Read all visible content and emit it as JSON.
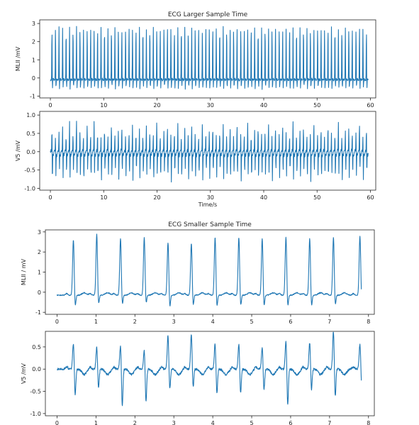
{
  "chart_data": [
    {
      "type": "line",
      "title": "ECG Larger Sample Time",
      "xlabel": "",
      "ylabel": "MLII /mV",
      "xlim": [
        -2,
        61
      ],
      "ylim": [
        -1.1,
        3.2
      ],
      "xticks": [
        0,
        10,
        20,
        30,
        40,
        50,
        60
      ],
      "yticks": [
        -1,
        0,
        1,
        2,
        3
      ],
      "color": "#1f77b4",
      "series": [
        {
          "beat_times": [
            0.3,
            0.96,
            1.62,
            2.3,
            2.95,
            3.6,
            4.25,
            4.9,
            5.55,
            6.2,
            6.9,
            7.55,
            8.2,
            8.85,
            9.5,
            10.15,
            10.8,
            11.45,
            12.1,
            12.75,
            13.4,
            14.1,
            14.75,
            15.4,
            16.05,
            16.7,
            17.35,
            18.0,
            18.65,
            19.3,
            19.95,
            20.6,
            21.3,
            21.95,
            22.6,
            23.25,
            23.9,
            24.55,
            25.2,
            25.85,
            26.5,
            27.15,
            27.8,
            28.5,
            29.15,
            29.8,
            30.45,
            31.1,
            31.75,
            32.4,
            33.05,
            33.7,
            34.35,
            35.0,
            35.7,
            36.35,
            37.0,
            37.65,
            38.3,
            38.95,
            39.6,
            40.25,
            40.9,
            41.55,
            42.2,
            42.9,
            43.55,
            44.2,
            44.85,
            45.5,
            46.15,
            46.8,
            47.45,
            48.1,
            48.75,
            49.4,
            50.1,
            50.75,
            51.4,
            52.05,
            52.7,
            53.35,
            54.0,
            54.65,
            55.3,
            55.95,
            56.6,
            57.3,
            57.95,
            58.6,
            59.25
          ],
          "peak_values": [
            2.7,
            2.9,
            2.85,
            2.8,
            2.7,
            2.85,
            2.8,
            2.9,
            2.75,
            2.8,
            2.85,
            2.8,
            2.7,
            2.8,
            2.85,
            2.8,
            2.75,
            2.8,
            2.85,
            2.8,
            2.7,
            2.8,
            2.85,
            2.75,
            2.8,
            2.85,
            2.8,
            2.7,
            2.8,
            2.85,
            2.8,
            2.75,
            2.9,
            2.85,
            2.8,
            2.7,
            2.8,
            2.85,
            2.8,
            2.75,
            2.8,
            2.85,
            2.8,
            2.7,
            2.85,
            2.8,
            2.9,
            2.75,
            2.8,
            2.85,
            2.8,
            2.7,
            2.8,
            2.85,
            2.8,
            2.75,
            2.8,
            2.85,
            2.8,
            2.7,
            2.8,
            2.85,
            2.75,
            2.8,
            2.85,
            2.8,
            2.7,
            2.8,
            2.85,
            2.8,
            2.75,
            2.8,
            2.85,
            2.8,
            2.7,
            2.8,
            2.85,
            2.8,
            2.75,
            2.8,
            2.85,
            2.8,
            2.7,
            2.8,
            2.85,
            2.8,
            2.75,
            2.8,
            2.85,
            2.8,
            2.7
          ],
          "trough_values": [
            -0.85,
            -0.8,
            -0.85,
            -0.75,
            -0.8,
            -0.85,
            -0.8,
            -0.75,
            -0.85,
            -0.8,
            -0.85,
            -0.8,
            -0.75,
            -0.85,
            -0.8,
            -0.85,
            -0.8,
            -0.75,
            -0.85,
            -0.8,
            -0.85,
            -0.8,
            -0.75,
            -0.85,
            -0.8,
            -0.85,
            -0.8,
            -0.75,
            -0.85,
            -0.8,
            -0.85,
            -0.8,
            -0.75,
            -0.85,
            -0.8,
            -0.85,
            -0.8,
            -0.75,
            -0.85,
            -0.8,
            -0.85,
            -0.8,
            -0.75,
            -0.85,
            -0.8,
            -0.85,
            -0.8,
            -0.75,
            -0.85,
            -0.8,
            -0.85,
            -0.8,
            -0.75,
            -0.85,
            -0.8,
            -0.85,
            -0.8,
            -0.75,
            -0.85,
            -0.8,
            -0.85,
            -0.8,
            -0.75,
            -0.85,
            -0.8,
            -0.85,
            -0.8,
            -0.75,
            -0.85,
            -0.8,
            -0.85,
            -0.8,
            -0.75,
            -0.85,
            -0.8,
            -0.85,
            -0.8,
            -0.75,
            -0.85,
            -0.8,
            -0.85,
            -0.8,
            -0.75,
            -0.85,
            -0.8,
            -0.85,
            -0.8,
            -0.75,
            -0.85,
            -0.8,
            -0.85
          ],
          "baseline": -0.15,
          "x_end": 59.6
        }
      ]
    },
    {
      "type": "line",
      "title": "",
      "xlabel": "Time/s",
      "ylabel": "V5 /mV",
      "xlim": [
        -2,
        61
      ],
      "ylim": [
        -1.05,
        1.1
      ],
      "xticks": [
        0,
        10,
        20,
        30,
        40,
        50,
        60
      ],
      "yticks": [
        -1.0,
        -0.5,
        0.0,
        0.5,
        1.0
      ],
      "color": "#1f77b4",
      "series": [
        {
          "beat_times": [
            0.3,
            0.96,
            1.62,
            2.3,
            2.95,
            3.6,
            4.25,
            4.9,
            5.55,
            6.2,
            6.9,
            7.55,
            8.2,
            8.85,
            9.5,
            10.15,
            10.8,
            11.45,
            12.1,
            12.75,
            13.4,
            14.1,
            14.75,
            15.4,
            16.05,
            16.7,
            17.35,
            18.0,
            18.65,
            19.3,
            19.95,
            20.6,
            21.3,
            21.95,
            22.6,
            23.25,
            23.9,
            24.55,
            25.2,
            25.85,
            26.5,
            27.15,
            27.8,
            28.5,
            29.15,
            29.8,
            30.45,
            31.1,
            31.75,
            32.4,
            33.05,
            33.7,
            34.35,
            35.0,
            35.7,
            36.35,
            37.0,
            37.65,
            38.3,
            38.95,
            39.6,
            40.25,
            40.9,
            41.55,
            42.2,
            42.9,
            43.55,
            44.2,
            44.85,
            45.5,
            46.15,
            46.8,
            47.45,
            48.1,
            48.75,
            49.4,
            50.1,
            50.75,
            51.4,
            52.05,
            52.7,
            53.35,
            54.0,
            54.65,
            55.3,
            55.95,
            56.6,
            57.3,
            57.95,
            58.6,
            59.25
          ],
          "peak_values": [
            0.65,
            0.4,
            0.55,
            0.7,
            0.45,
            0.85,
            0.5,
            0.9,
            0.6,
            0.45,
            0.75,
            0.5,
            0.85,
            0.55,
            0.4,
            0.65,
            0.45,
            0.8,
            0.5,
            0.6,
            0.7,
            0.45,
            0.55,
            0.8,
            0.5,
            0.65,
            0.45,
            0.75,
            0.55,
            0.5,
            0.85,
            0.45,
            0.6,
            0.7,
            0.5,
            0.55,
            0.8,
            0.45,
            0.65,
            0.5,
            0.75,
            0.55,
            0.45,
            0.85,
            0.5,
            0.6,
            0.7,
            0.45,
            0.55,
            0.8,
            0.5,
            0.65,
            0.45,
            0.75,
            0.55,
            0.5,
            0.85,
            0.45,
            0.6,
            0.7,
            0.5,
            0.55,
            0.8,
            0.45,
            0.65,
            0.5,
            0.75,
            0.55,
            0.45,
            0.85,
            0.5,
            0.6,
            0.7,
            0.45,
            0.55,
            0.8,
            0.5,
            0.65,
            0.45,
            0.75,
            0.55,
            0.5,
            0.85,
            0.45,
            0.6,
            0.7,
            0.5,
            0.55,
            0.8,
            0.45,
            0.65
          ],
          "trough_values": [
            -0.95,
            -0.75,
            -0.6,
            -0.85,
            -0.7,
            -0.9,
            -0.65,
            -0.8,
            -0.75,
            -0.95,
            -0.6,
            -0.85,
            -0.7,
            -0.8,
            -0.9,
            -0.65,
            -0.75,
            -0.85,
            -0.6,
            -0.9,
            -0.7,
            -0.8,
            -0.75,
            -0.95,
            -0.65,
            -0.85,
            -0.7,
            -0.8,
            -0.6,
            -0.9,
            -0.75,
            -0.85,
            -0.65,
            -0.8,
            -0.95,
            -0.7,
            -0.75,
            -0.85,
            -0.6,
            -0.9,
            -0.7,
            -0.8,
            -0.75,
            -0.95,
            -0.65,
            -0.85,
            -0.7,
            -0.8,
            -0.6,
            -0.9,
            -0.75,
            -0.85,
            -0.65,
            -0.8,
            -0.95,
            -0.7,
            -0.75,
            -0.85,
            -0.6,
            -0.9,
            -0.7,
            -0.8,
            -0.75,
            -0.95,
            -0.65,
            -0.85,
            -0.7,
            -0.8,
            -0.6,
            -0.9,
            -0.75,
            -0.85,
            -0.65,
            -0.8,
            -0.95,
            -0.7,
            -0.75,
            -0.85,
            -0.6,
            -0.9,
            -0.7,
            -0.8,
            -0.75,
            -0.95,
            -0.65,
            -0.85,
            -0.7,
            -0.8,
            -0.6,
            -0.9,
            -0.75
          ],
          "baseline": 0.0,
          "x_end": 59.6
        }
      ]
    },
    {
      "type": "line",
      "title": "ECG Smaller Sample Time",
      "xlabel": "",
      "ylabel": "MLII / mV",
      "xlim": [
        -0.3,
        8.15
      ],
      "ylim": [
        -1.1,
        3.1
      ],
      "xticks": [
        0,
        1,
        2,
        3,
        4,
        5,
        6,
        7,
        8
      ],
      "yticks": [
        -1,
        0,
        1,
        2,
        3
      ],
      "color": "#1f77b4",
      "series": [
        {
          "beat_times": [
            0.42,
            1.02,
            1.63,
            2.24,
            2.85,
            3.45,
            4.06,
            4.67,
            5.27,
            5.88,
            6.49,
            7.1,
            7.78
          ],
          "peak_values": [
            2.65,
            2.9,
            2.7,
            2.75,
            2.5,
            2.45,
            2.75,
            2.75,
            2.7,
            2.75,
            2.7,
            2.75,
            2.8
          ],
          "trough_values": [
            -0.85,
            -0.75,
            -0.75,
            -0.7,
            -0.9,
            -0.8,
            -0.9,
            -0.85,
            -0.85,
            -0.85,
            -0.85,
            -0.8,
            -0.5
          ],
          "baseline": -0.15,
          "x_end": 7.82
        }
      ]
    },
    {
      "type": "line",
      "title": "",
      "xlabel": "",
      "ylabel": "V5 /mV",
      "xlim": [
        -0.3,
        8.15
      ],
      "ylim": [
        -1.05,
        0.85
      ],
      "xticks": [
        0,
        1,
        2,
        3,
        4,
        5,
        6,
        7,
        8
      ],
      "yticks": [
        -1.0,
        -0.5,
        0.0,
        0.5
      ],
      "color": "#1f77b4",
      "series": [
        {
          "beat_times": [
            0.42,
            1.02,
            1.63,
            2.24,
            2.85,
            3.45,
            4.06,
            4.67,
            5.27,
            5.88,
            6.49,
            7.1,
            7.78
          ],
          "peak_values": [
            0.6,
            0.5,
            0.55,
            0.45,
            0.78,
            0.78,
            0.58,
            0.58,
            0.5,
            0.65,
            0.62,
            0.88,
            0.58
          ],
          "trough_values": [
            -0.7,
            -0.5,
            -0.95,
            -0.85,
            -0.55,
            -0.5,
            -0.65,
            -0.65,
            -0.55,
            -0.95,
            -0.55,
            -0.75,
            -0.45
          ],
          "baseline": 0.0,
          "x_end": 7.82
        }
      ]
    }
  ]
}
